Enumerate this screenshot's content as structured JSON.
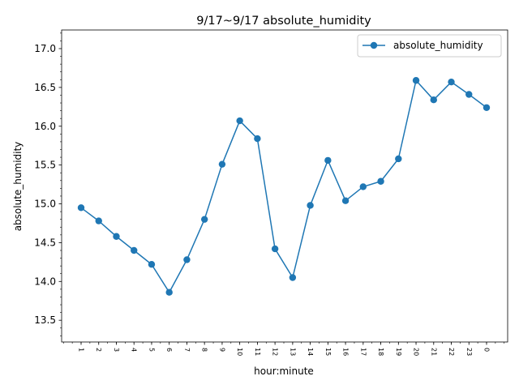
{
  "chart_data": {
    "type": "line",
    "title": "9/17~9/17 absolute_humidity",
    "xlabel": "hour:minute",
    "ylabel": "absolute_humidity",
    "categories": [
      "1",
      "2",
      "3",
      "4",
      "5",
      "6",
      "7",
      "8",
      "9",
      "10",
      "11",
      "12",
      "13",
      "14",
      "15",
      "16",
      "17",
      "18",
      "19",
      "20",
      "21",
      "22",
      "23",
      "0"
    ],
    "series": [
      {
        "name": "absolute_humidity",
        "color": "#1f77b4",
        "marker": "circle",
        "values": [
          14.95,
          14.78,
          14.58,
          14.4,
          14.22,
          13.86,
          14.28,
          14.8,
          15.51,
          16.07,
          15.84,
          14.42,
          14.05,
          14.98,
          15.56,
          15.04,
          15.22,
          15.29,
          15.58,
          16.59,
          16.34,
          16.57,
          16.41,
          16.24
        ]
      }
    ],
    "ylim": [
      13.22,
      17.24
    ],
    "yticks": [
      "13.5",
      "14.0",
      "14.5",
      "15.0",
      "15.5",
      "16.0",
      "16.5",
      "17.0"
    ],
    "grid": false,
    "legend": "top-right"
  }
}
